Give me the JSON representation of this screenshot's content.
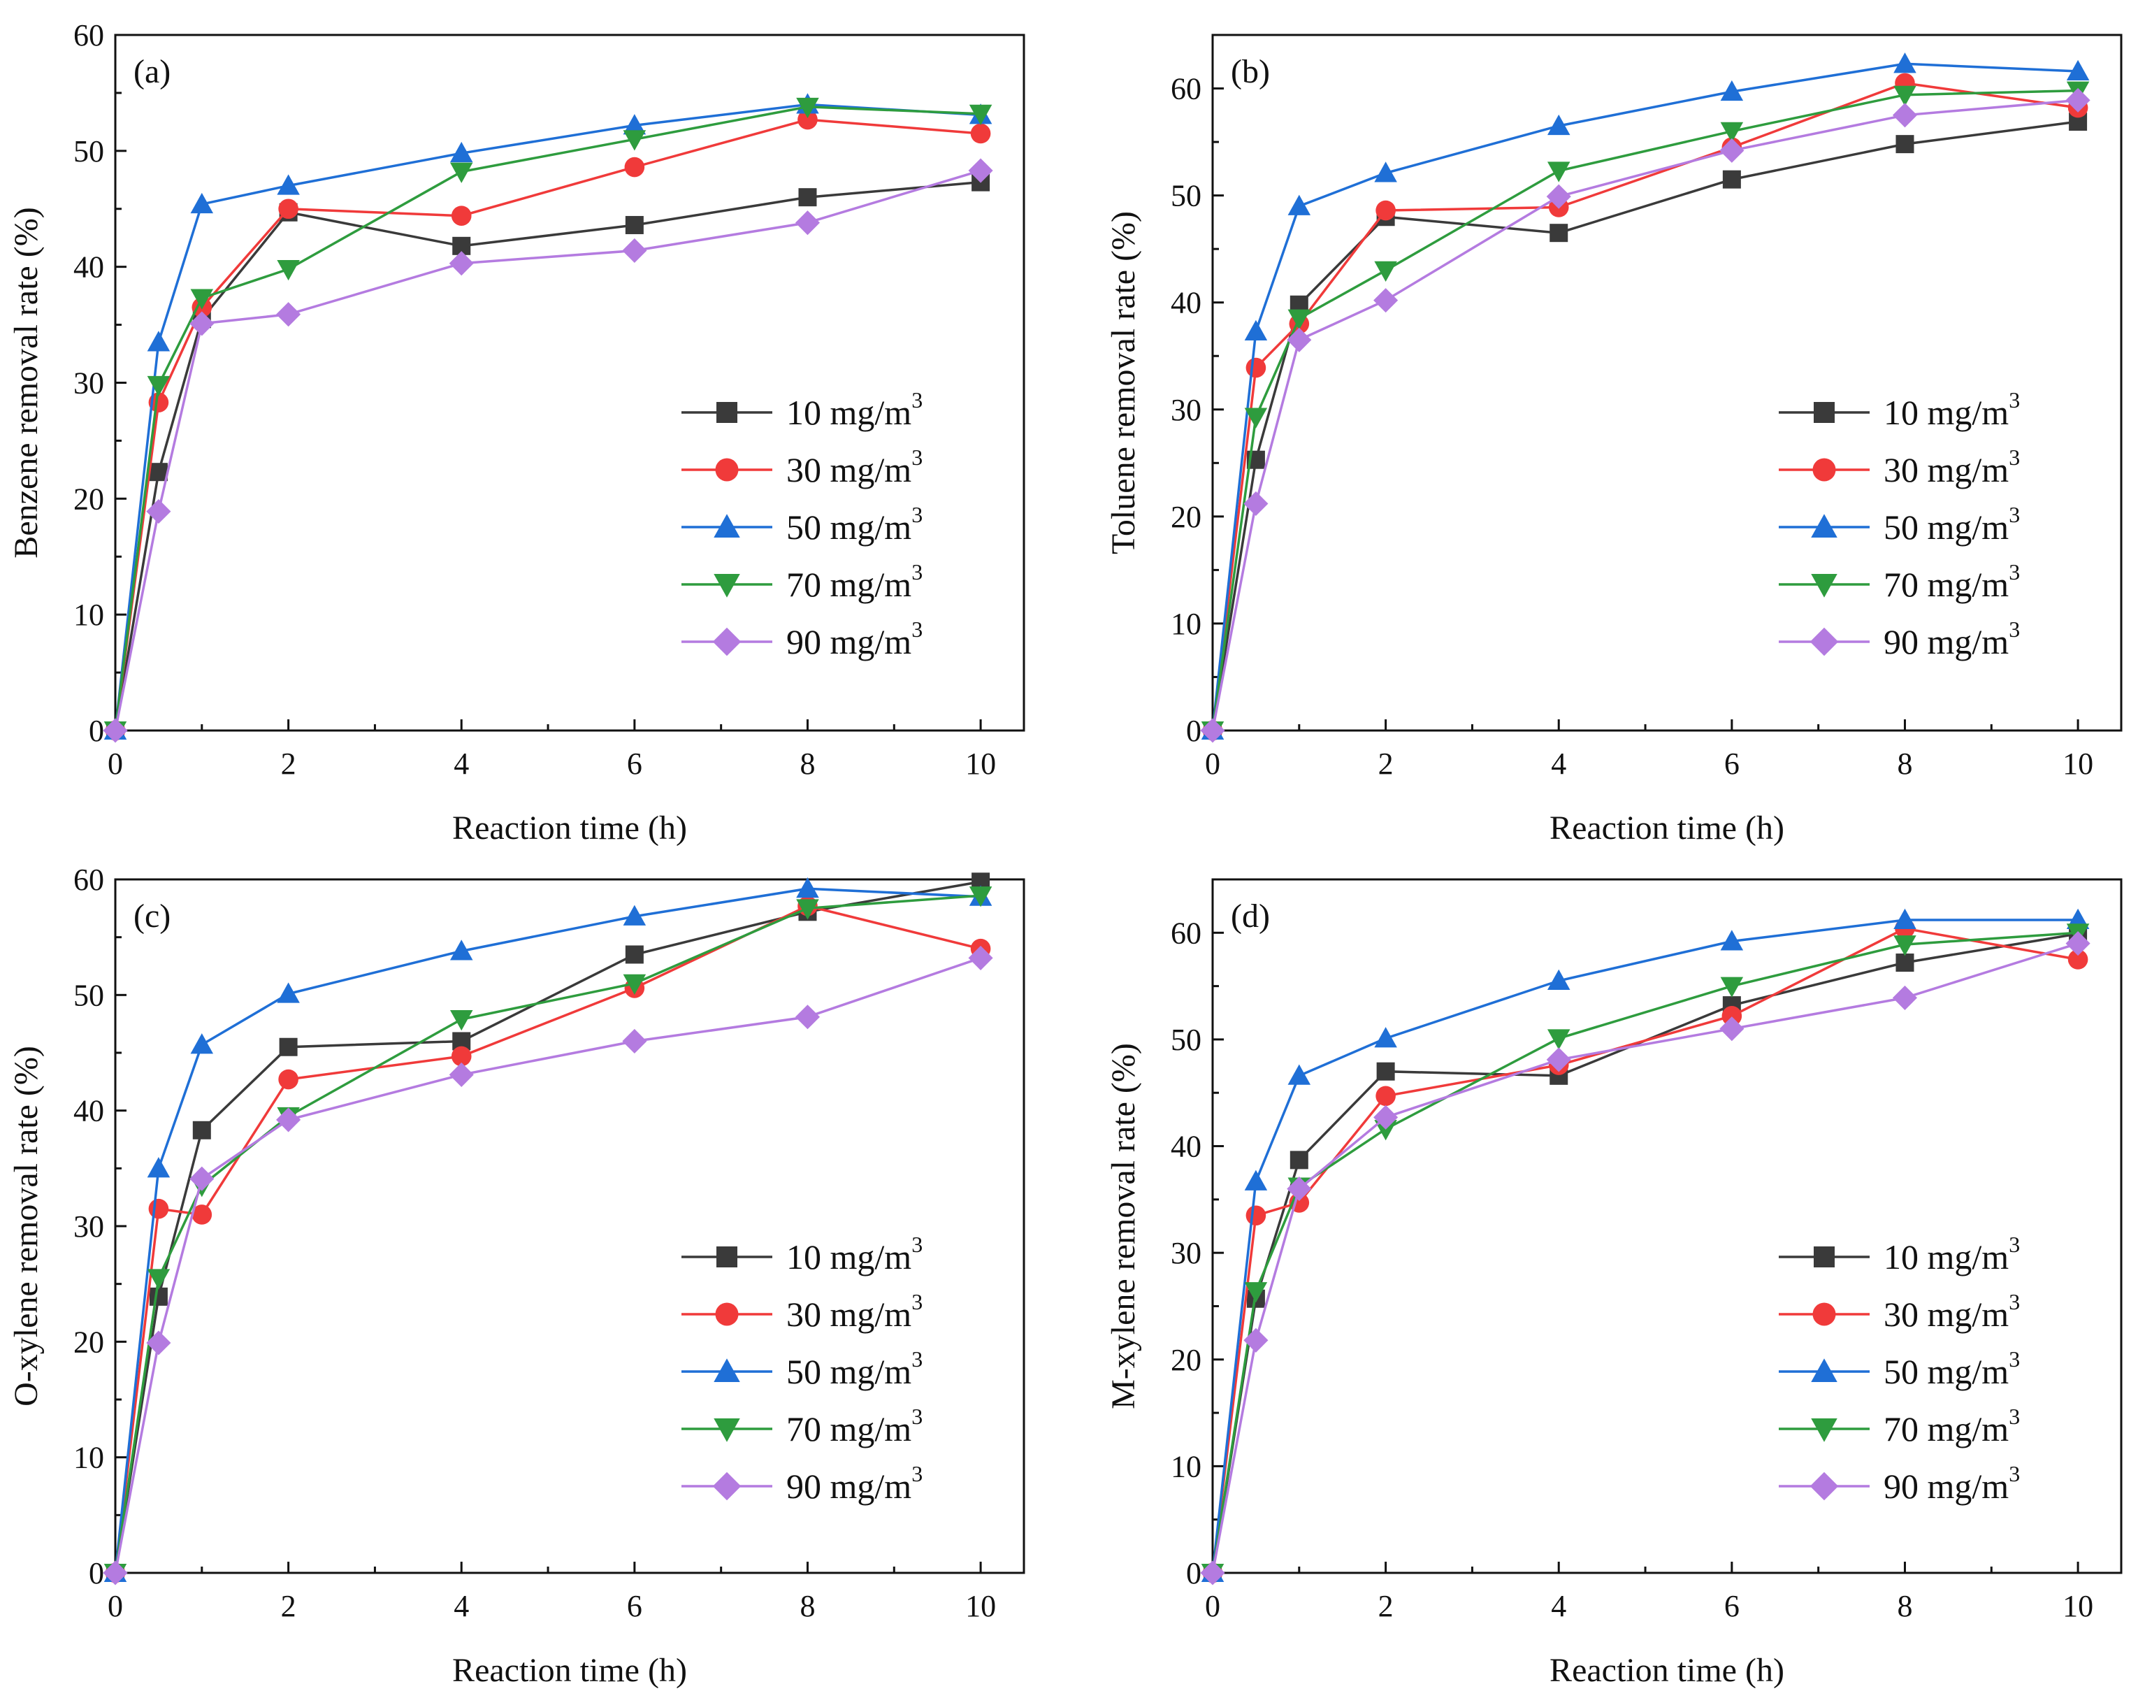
{
  "chart_data": [
    {
      "type": "line",
      "panel_label": "(a)",
      "xlabel": "Reaction time (h)",
      "ylabel": "Benzene removal rate (%)",
      "xlim": [
        0,
        10.5
      ],
      "ylim": [
        0,
        60
      ],
      "xticks": [
        "0",
        "2",
        "4",
        "6",
        "8",
        "10"
      ],
      "yticks": [
        "0",
        "10",
        "20",
        "30",
        "40",
        "50",
        "60"
      ],
      "x": [
        0,
        0.5,
        1,
        2,
        4,
        6,
        8,
        10
      ],
      "legend_position": "center-right",
      "series": [
        {
          "name": "10 mg/m",
          "sup": "3",
          "color": "#3a3a3a",
          "marker": "square",
          "values": [
            0,
            22.3,
            35.5,
            44.7,
            41.8,
            43.6,
            46.0,
            47.3
          ]
        },
        {
          "name": "30 mg/m",
          "sup": "3",
          "color": "#f03a3a",
          "marker": "circle",
          "values": [
            0,
            28.3,
            36.5,
            45.0,
            44.4,
            48.6,
            52.7,
            51.5
          ]
        },
        {
          "name": "50 mg/m",
          "sup": "3",
          "color": "#1f6fd6",
          "marker": "triangle-up",
          "values": [
            0,
            33.5,
            45.4,
            47.0,
            49.8,
            52.2,
            54.0,
            53.1
          ]
        },
        {
          "name": "70 mg/m",
          "sup": "3",
          "color": "#2e9c3e",
          "marker": "triangle-down",
          "values": [
            0,
            29.8,
            37.3,
            39.8,
            48.2,
            51.0,
            53.8,
            53.2
          ]
        },
        {
          "name": "90 mg/m",
          "sup": "3",
          "color": "#b47be0",
          "marker": "diamond",
          "values": [
            0,
            18.9,
            35.1,
            35.9,
            40.3,
            41.4,
            43.8,
            48.3
          ]
        }
      ]
    },
    {
      "type": "line",
      "panel_label": "(b)",
      "xlabel": "Reaction time (h)",
      "ylabel": "Toluene removal rate (%)",
      "xlim": [
        0,
        10.5
      ],
      "ylim": [
        0,
        65
      ],
      "xticks": [
        "0",
        "2",
        "4",
        "6",
        "8",
        "10"
      ],
      "yticks": [
        "0",
        "10",
        "20",
        "30",
        "40",
        "50",
        "60"
      ],
      "x": [
        0,
        0.5,
        1,
        2,
        4,
        6,
        8,
        10
      ],
      "legend_position": "center-right",
      "series": [
        {
          "name": "10 mg/m",
          "sup": "3",
          "color": "#3a3a3a",
          "marker": "square",
          "values": [
            0,
            25.3,
            39.8,
            48.0,
            46.5,
            51.5,
            54.8,
            56.9
          ]
        },
        {
          "name": "30 mg/m",
          "sup": "3",
          "color": "#f03a3a",
          "marker": "circle",
          "values": [
            0,
            33.9,
            38.0,
            48.6,
            48.9,
            54.5,
            60.5,
            58.2
          ]
        },
        {
          "name": "50 mg/m",
          "sup": "3",
          "color": "#1f6fd6",
          "marker": "triangle-up",
          "values": [
            0,
            37.3,
            49.0,
            52.1,
            56.5,
            59.7,
            62.3,
            61.6
          ]
        },
        {
          "name": "70 mg/m",
          "sup": "3",
          "color": "#2e9c3e",
          "marker": "triangle-down",
          "values": [
            0,
            29.3,
            38.5,
            43.0,
            52.3,
            56.0,
            59.4,
            59.8
          ]
        },
        {
          "name": "90 mg/m",
          "sup": "3",
          "color": "#b47be0",
          "marker": "diamond",
          "values": [
            0,
            21.2,
            36.5,
            40.2,
            49.9,
            54.2,
            57.5,
            58.9
          ]
        }
      ]
    },
    {
      "type": "line",
      "panel_label": "(c)",
      "xlabel": "Reaction time (h)",
      "ylabel": "O-xylene removal rate (%)",
      "xlim": [
        0,
        10.5
      ],
      "ylim": [
        0,
        60
      ],
      "xticks": [
        "0",
        "2",
        "4",
        "6",
        "8",
        "10"
      ],
      "yticks": [
        "0",
        "10",
        "20",
        "30",
        "40",
        "50",
        "60"
      ],
      "x": [
        0,
        0.5,
        1,
        2,
        4,
        6,
        8,
        10
      ],
      "legend_position": "center-right",
      "series": [
        {
          "name": "10 mg/m",
          "sup": "3",
          "color": "#3a3a3a",
          "marker": "square",
          "values": [
            0,
            23.9,
            38.3,
            45.5,
            46.0,
            53.5,
            57.2,
            59.8
          ]
        },
        {
          "name": "30 mg/m",
          "sup": "3",
          "color": "#f03a3a",
          "marker": "circle",
          "values": [
            0,
            31.5,
            31.0,
            42.7,
            44.7,
            50.6,
            57.7,
            54.0
          ]
        },
        {
          "name": "50 mg/m",
          "sup": "3",
          "color": "#1f6fd6",
          "marker": "triangle-up",
          "values": [
            0,
            35.0,
            45.7,
            50.1,
            53.8,
            56.8,
            59.2,
            58.5
          ]
        },
        {
          "name": "70 mg/m",
          "sup": "3",
          "color": "#2e9c3e",
          "marker": "triangle-down",
          "values": [
            0,
            25.5,
            33.5,
            39.5,
            47.9,
            51.0,
            57.5,
            58.6
          ]
        },
        {
          "name": "90 mg/m",
          "sup": "3",
          "color": "#b47be0",
          "marker": "diamond",
          "values": [
            0,
            19.9,
            34.1,
            39.2,
            43.1,
            46.0,
            48.1,
            53.2
          ]
        }
      ]
    },
    {
      "type": "line",
      "panel_label": "(d)",
      "xlabel": "Reaction time (h)",
      "ylabel": "M-xylene removal rate (%)",
      "xlim": [
        0,
        10.5
      ],
      "ylim": [
        0,
        65
      ],
      "xticks": [
        "0",
        "2",
        "4",
        "6",
        "8",
        "10"
      ],
      "yticks": [
        "0",
        "10",
        "20",
        "30",
        "40",
        "50",
        "60"
      ],
      "x": [
        0,
        0.5,
        1,
        2,
        4,
        6,
        8,
        10
      ],
      "legend_position": "center-right",
      "series": [
        {
          "name": "10 mg/m",
          "sup": "3",
          "color": "#3a3a3a",
          "marker": "square",
          "values": [
            0,
            25.7,
            38.7,
            47.0,
            46.6,
            53.2,
            57.2,
            59.9
          ]
        },
        {
          "name": "30 mg/m",
          "sup": "3",
          "color": "#f03a3a",
          "marker": "circle",
          "values": [
            0,
            33.5,
            34.7,
            44.7,
            47.6,
            52.2,
            60.4,
            57.5
          ]
        },
        {
          "name": "50 mg/m",
          "sup": "3",
          "color": "#1f6fd6",
          "marker": "triangle-up",
          "values": [
            0,
            36.7,
            46.6,
            50.1,
            55.5,
            59.2,
            61.2,
            61.2
          ]
        },
        {
          "name": "70 mg/m",
          "sup": "3",
          "color": "#2e9c3e",
          "marker": "triangle-down",
          "values": [
            0,
            26.4,
            36.2,
            41.6,
            50.1,
            55.0,
            58.9,
            60.0
          ]
        },
        {
          "name": "90 mg/m",
          "sup": "3",
          "color": "#b47be0",
          "marker": "diamond",
          "values": [
            0,
            21.8,
            36.0,
            42.7,
            48.1,
            51.0,
            53.9,
            59.0
          ]
        }
      ]
    }
  ]
}
